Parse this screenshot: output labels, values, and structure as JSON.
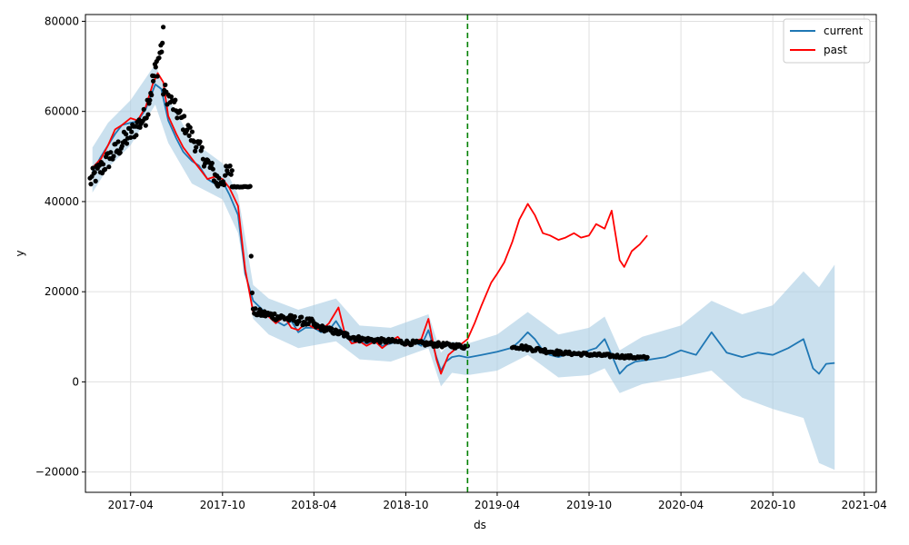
{
  "chart_data": {
    "type": "line",
    "title": "",
    "xlabel": "ds",
    "ylabel": "y",
    "xlim": [
      "2017-01-01",
      "2021-04-25"
    ],
    "ylim": [
      -24500,
      81500
    ],
    "x_ticks": [
      "2017-04",
      "2017-10",
      "2018-04",
      "2018-10",
      "2019-04",
      "2019-10",
      "2020-04",
      "2020-10",
      "2021-04"
    ],
    "y_ticks": [
      -20000,
      0,
      20000,
      40000,
      60000,
      80000
    ],
    "y_tick_labels": [
      "−20000",
      "0",
      "20000",
      "40000",
      "60000",
      "80000"
    ],
    "grid": true,
    "legend_position": "top-right",
    "changepoint_marker": {
      "x": "2019-02-01",
      "color": "#008000",
      "style": "dashed"
    },
    "colors": {
      "current": "#1f77b4",
      "past": "#ff0000",
      "band": "#a6cbe3",
      "points": "#000000"
    },
    "series": [
      {
        "name": "current",
        "color": "#1f77b4",
        "points": [
          [
            "2017-01-15",
            46500
          ],
          [
            "2017-02-01",
            50000
          ],
          [
            "2017-02-15",
            52500
          ],
          [
            "2017-03-01",
            55000
          ],
          [
            "2017-03-15",
            57000
          ],
          [
            "2017-04-01",
            57500
          ],
          [
            "2017-04-15",
            57800
          ],
          [
            "2017-05-01",
            60500
          ],
          [
            "2017-05-20",
            66000
          ],
          [
            "2017-06-01",
            65000
          ],
          [
            "2017-06-15",
            58000
          ],
          [
            "2017-07-01",
            54000
          ],
          [
            "2017-07-15",
            51000
          ],
          [
            "2017-08-01",
            49000
          ],
          [
            "2017-08-15",
            48000
          ],
          [
            "2017-09-01",
            45000
          ],
          [
            "2017-09-15",
            44000
          ],
          [
            "2017-10-01",
            44500
          ],
          [
            "2017-10-15",
            41500
          ],
          [
            "2017-11-01",
            37000
          ],
          [
            "2017-11-15",
            24000
          ],
          [
            "2017-12-01",
            18000
          ],
          [
            "2017-12-15",
            16500
          ],
          [
            "2018-01-01",
            14500
          ],
          [
            "2018-01-15",
            13500
          ],
          [
            "2018-02-01",
            12500
          ],
          [
            "2018-02-15",
            13500
          ],
          [
            "2018-03-01",
            11000
          ],
          [
            "2018-03-15",
            12000
          ],
          [
            "2018-04-01",
            12000
          ],
          [
            "2018-04-15",
            11000
          ],
          [
            "2018-05-01",
            11500
          ],
          [
            "2018-05-15",
            13500
          ],
          [
            "2018-06-01",
            10500
          ],
          [
            "2018-06-15",
            9000
          ],
          [
            "2018-07-01",
            9000
          ],
          [
            "2018-07-15",
            8500
          ],
          [
            "2018-08-01",
            9000
          ],
          [
            "2018-08-15",
            8000
          ],
          [
            "2018-09-01",
            8500
          ],
          [
            "2018-09-15",
            9000
          ],
          [
            "2018-10-01",
            8000
          ],
          [
            "2018-10-15",
            9000
          ],
          [
            "2018-11-01",
            8000
          ],
          [
            "2018-11-15",
            11500
          ],
          [
            "2018-12-01",
            5500
          ],
          [
            "2018-12-10",
            2500
          ],
          [
            "2018-12-20",
            4500
          ],
          [
            "2019-01-01",
            5500
          ],
          [
            "2019-01-15",
            5800
          ],
          [
            "2019-02-01",
            5400
          ],
          [
            "2019-03-01",
            6000
          ],
          [
            "2019-04-01",
            6700
          ],
          [
            "2019-05-01",
            7600
          ],
          [
            "2019-05-15",
            9000
          ],
          [
            "2019-06-01",
            11000
          ],
          [
            "2019-06-15",
            9500
          ],
          [
            "2019-07-01",
            7000
          ],
          [
            "2019-07-15",
            6000
          ],
          [
            "2019-08-01",
            5500
          ],
          [
            "2019-08-15",
            6000
          ],
          [
            "2019-09-01",
            6500
          ],
          [
            "2019-09-15",
            6000
          ],
          [
            "2019-10-01",
            7000
          ],
          [
            "2019-10-15",
            7500
          ],
          [
            "2019-11-01",
            9500
          ],
          [
            "2019-11-15",
            6000
          ],
          [
            "2019-12-01",
            1800
          ],
          [
            "2019-12-15",
            3500
          ],
          [
            "2020-01-01",
            4500
          ],
          [
            "2020-02-01",
            5000
          ],
          [
            "2020-03-01",
            5500
          ],
          [
            "2020-04-01",
            7000
          ],
          [
            "2020-05-01",
            6000
          ],
          [
            "2020-06-01",
            11000
          ],
          [
            "2020-07-01",
            6500
          ],
          [
            "2020-08-01",
            5500
          ],
          [
            "2020-09-01",
            6500
          ],
          [
            "2020-10-01",
            6000
          ],
          [
            "2020-11-01",
            7500
          ],
          [
            "2020-12-01",
            9500
          ],
          [
            "2020-12-20",
            3000
          ],
          [
            "2021-01-01",
            1800
          ],
          [
            "2021-01-15",
            4000
          ],
          [
            "2021-02-01",
            4200
          ]
        ]
      },
      {
        "name": "past",
        "color": "#ff0000",
        "points": [
          [
            "2017-01-15",
            47500
          ],
          [
            "2017-02-01",
            49500
          ],
          [
            "2017-02-15",
            52500
          ],
          [
            "2017-03-01",
            56000
          ],
          [
            "2017-03-15",
            57000
          ],
          [
            "2017-04-01",
            58500
          ],
          [
            "2017-04-15",
            58000
          ],
          [
            "2017-05-01",
            61000
          ],
          [
            "2017-05-15",
            66000
          ],
          [
            "2017-05-25",
            68500
          ],
          [
            "2017-06-05",
            66500
          ],
          [
            "2017-06-15",
            59000
          ],
          [
            "2017-07-01",
            55000
          ],
          [
            "2017-07-15",
            52000
          ],
          [
            "2017-08-01",
            49500
          ],
          [
            "2017-08-15",
            47500
          ],
          [
            "2017-09-01",
            45000
          ],
          [
            "2017-09-15",
            45500
          ],
          [
            "2017-10-01",
            45000
          ],
          [
            "2017-10-15",
            43000
          ],
          [
            "2017-11-01",
            39000
          ],
          [
            "2017-11-15",
            25000
          ],
          [
            "2017-12-01",
            15500
          ],
          [
            "2017-12-15",
            15000
          ],
          [
            "2018-01-01",
            14500
          ],
          [
            "2018-01-15",
            13000
          ],
          [
            "2018-02-01",
            14500
          ],
          [
            "2018-02-15",
            12000
          ],
          [
            "2018-03-01",
            11500
          ],
          [
            "2018-03-15",
            13000
          ],
          [
            "2018-04-01",
            12000
          ],
          [
            "2018-04-15",
            11500
          ],
          [
            "2018-05-01",
            13000
          ],
          [
            "2018-05-20",
            16500
          ],
          [
            "2018-06-01",
            11000
          ],
          [
            "2018-06-15",
            8500
          ],
          [
            "2018-07-01",
            9000
          ],
          [
            "2018-07-15",
            8000
          ],
          [
            "2018-08-01",
            9000
          ],
          [
            "2018-08-15",
            7500
          ],
          [
            "2018-09-01",
            9000
          ],
          [
            "2018-09-15",
            10000
          ],
          [
            "2018-10-01",
            8000
          ],
          [
            "2018-10-15",
            9000
          ],
          [
            "2018-11-01",
            9500
          ],
          [
            "2018-11-15",
            14000
          ],
          [
            "2018-12-01",
            5000
          ],
          [
            "2018-12-10",
            1800
          ],
          [
            "2018-12-25",
            6000
          ],
          [
            "2019-01-15",
            8000
          ],
          [
            "2019-02-01",
            9500
          ],
          [
            "2019-02-15",
            13000
          ],
          [
            "2019-03-01",
            17000
          ],
          [
            "2019-03-20",
            22000
          ],
          [
            "2019-04-01",
            24000
          ],
          [
            "2019-04-15",
            26500
          ],
          [
            "2019-05-01",
            31000
          ],
          [
            "2019-05-15",
            36000
          ],
          [
            "2019-06-01",
            39500
          ],
          [
            "2019-06-15",
            37000
          ],
          [
            "2019-07-01",
            33000
          ],
          [
            "2019-07-15",
            32500
          ],
          [
            "2019-08-01",
            31500
          ],
          [
            "2019-08-15",
            32000
          ],
          [
            "2019-09-01",
            33000
          ],
          [
            "2019-09-15",
            32000
          ],
          [
            "2019-10-01",
            32500
          ],
          [
            "2019-10-15",
            35000
          ],
          [
            "2019-11-01",
            34000
          ],
          [
            "2019-11-15",
            38000
          ],
          [
            "2019-12-01",
            27000
          ],
          [
            "2019-12-10",
            25500
          ],
          [
            "2019-12-25",
            29000
          ],
          [
            "2020-01-10",
            30500
          ],
          [
            "2020-01-25",
            32500
          ]
        ]
      }
    ],
    "uncertainty_band": {
      "upper": [
        [
          "2017-01-15",
          52000
        ],
        [
          "2017-02-15",
          57500
        ],
        [
          "2017-04-01",
          62500
        ],
        [
          "2017-05-20",
          70500
        ],
        [
          "2017-06-15",
          63000
        ],
        [
          "2017-08-01",
          53500
        ],
        [
          "2017-10-01",
          48500
        ],
        [
          "2017-11-01",
          41500
        ],
        [
          "2017-12-01",
          21500
        ],
        [
          "2018-01-01",
          18500
        ],
        [
          "2018-03-01",
          16000
        ],
        [
          "2018-05-15",
          18500
        ],
        [
          "2018-07-01",
          12500
        ],
        [
          "2018-09-01",
          12000
        ],
        [
          "2018-11-15",
          15000
        ],
        [
          "2018-12-10",
          6500
        ],
        [
          "2019-01-01",
          9000
        ],
        [
          "2019-02-01",
          8500
        ],
        [
          "2019-04-01",
          10500
        ],
        [
          "2019-06-01",
          15500
        ],
        [
          "2019-08-01",
          10500
        ],
        [
          "2019-10-01",
          12000
        ],
        [
          "2019-11-01",
          14500
        ],
        [
          "2019-12-01",
          7000
        ],
        [
          "2020-01-15",
          10000
        ],
        [
          "2020-04-01",
          12500
        ],
        [
          "2020-06-01",
          18000
        ],
        [
          "2020-08-01",
          15000
        ],
        [
          "2020-10-01",
          17000
        ],
        [
          "2020-12-01",
          24500
        ],
        [
          "2021-01-01",
          21000
        ],
        [
          "2021-02-01",
          26000
        ]
      ],
      "lower": [
        [
          "2017-01-15",
          42000
        ],
        [
          "2017-02-15",
          47500
        ],
        [
          "2017-04-01",
          52500
        ],
        [
          "2017-05-20",
          61500
        ],
        [
          "2017-06-15",
          53000
        ],
        [
          "2017-08-01",
          44000
        ],
        [
          "2017-10-01",
          40500
        ],
        [
          "2017-11-01",
          33000
        ],
        [
          "2017-12-01",
          14000
        ],
        [
          "2018-01-01",
          10500
        ],
        [
          "2018-03-01",
          7500
        ],
        [
          "2018-05-15",
          9000
        ],
        [
          "2018-07-01",
          5000
        ],
        [
          "2018-09-01",
          4500
        ],
        [
          "2018-11-15",
          7500
        ],
        [
          "2018-12-10",
          -1000
        ],
        [
          "2019-01-01",
          2000
        ],
        [
          "2019-02-01",
          1500
        ],
        [
          "2019-04-01",
          2500
        ],
        [
          "2019-06-01",
          6000
        ],
        [
          "2019-08-01",
          1000
        ],
        [
          "2019-10-01",
          1500
        ],
        [
          "2019-11-01",
          3000
        ],
        [
          "2019-12-01",
          -2500
        ],
        [
          "2020-01-15",
          -500
        ],
        [
          "2020-04-01",
          1000
        ],
        [
          "2020-06-01",
          2500
        ],
        [
          "2020-08-01",
          -3500
        ],
        [
          "2020-10-01",
          -6000
        ],
        [
          "2020-12-01",
          -8000
        ],
        [
          "2021-01-01",
          -18000
        ],
        [
          "2021-02-01",
          -19500
        ]
      ]
    },
    "observations": {
      "color": "#000000",
      "groups": [
        {
          "start": "2017-01-10",
          "end": "2017-05-01",
          "from": 44500,
          "to": 59000,
          "jitter": 2200,
          "n": 60
        },
        {
          "start": "2017-05-01",
          "end": "2017-06-05",
          "from": 60000,
          "to": 76000,
          "jitter": 3000,
          "n": 22
        },
        {
          "start": "2017-06-05",
          "end": "2017-09-20",
          "from": 65000,
          "to": 45000,
          "jitter": 2000,
          "n": 55
        },
        {
          "start": "2017-09-20",
          "end": "2017-10-20",
          "from": 44000,
          "to": 47000,
          "jitter": 2200,
          "n": 16
        },
        {
          "start": "2017-10-20",
          "end": "2017-11-25",
          "from": 43300,
          "to": 43300,
          "jitter": 100,
          "n": 18
        },
        {
          "start": "2017-11-27",
          "end": "2017-11-29",
          "from": 28000,
          "to": 20000,
          "jitter": 300,
          "n": 2
        },
        {
          "start": "2017-12-01",
          "end": "2018-04-01",
          "from": 15500,
          "to": 13000,
          "jitter": 900,
          "n": 55
        },
        {
          "start": "2018-04-01",
          "end": "2018-07-01",
          "from": 12500,
          "to": 9500,
          "jitter": 600,
          "n": 45
        },
        {
          "start": "2018-07-01",
          "end": "2019-02-01",
          "from": 9500,
          "to": 7800,
          "jitter": 500,
          "n": 90
        },
        {
          "start": "2019-05-01",
          "end": "2019-08-01",
          "from": 8000,
          "to": 6500,
          "jitter": 500,
          "n": 35
        },
        {
          "start": "2019-08-01",
          "end": "2020-01-25",
          "from": 6500,
          "to": 5300,
          "jitter": 350,
          "n": 75
        }
      ]
    }
  }
}
